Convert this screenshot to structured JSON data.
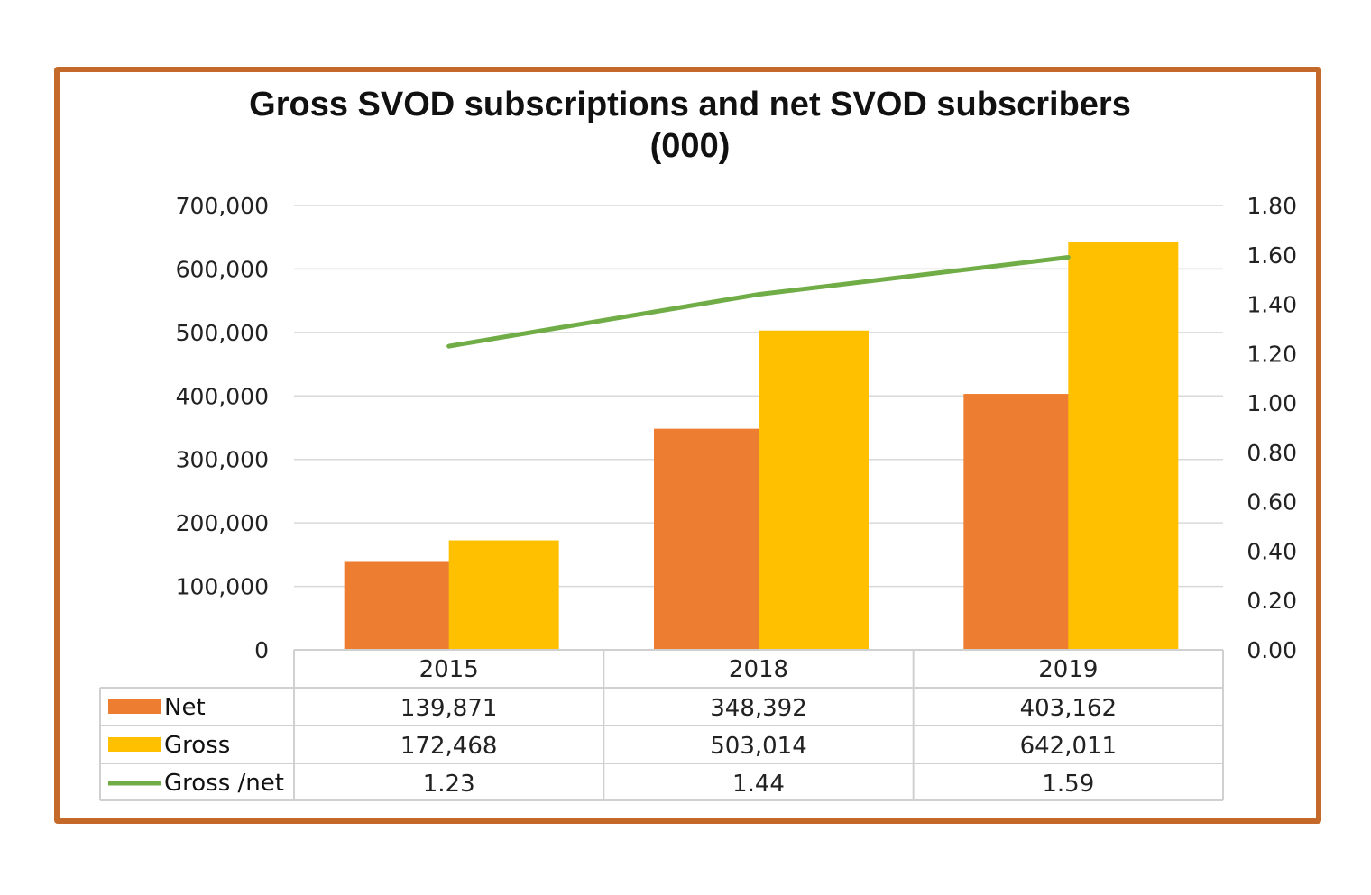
{
  "chart_data": {
    "type": "bar",
    "title": "Gross SVOD subscriptions and net SVOD subscribers",
    "subtitle": "(000)",
    "categories": [
      "2015",
      "2018",
      "2019"
    ],
    "series": [
      {
        "name": "Net",
        "kind": "bar",
        "color": "#ed7d31",
        "values": [
          139871,
          348392,
          403162
        ],
        "labels": [
          "139,871",
          "348,392",
          "403,162"
        ]
      },
      {
        "name": "Gross",
        "kind": "bar",
        "color": "#ffc000",
        "values": [
          172468,
          503014,
          642011
        ],
        "labels": [
          "172,468",
          "503,014",
          "642,011"
        ]
      },
      {
        "name": "Gross /net",
        "kind": "line",
        "axis": "right",
        "color": "#70ad47",
        "values": [
          1.23,
          1.44,
          1.59
        ],
        "labels": [
          "1.23",
          "1.44",
          "1.59"
        ]
      }
    ],
    "ylim": [
      0,
      700000
    ],
    "yticks": [
      "0",
      "100,000",
      "200,000",
      "300,000",
      "400,000",
      "500,000",
      "600,000",
      "700,000"
    ],
    "y2lim": [
      0,
      1.8
    ],
    "y2ticks": [
      "0.00",
      "0.20",
      "0.40",
      "0.60",
      "0.80",
      "1.00",
      "1.20",
      "1.40",
      "1.60",
      "1.80"
    ],
    "grid": true,
    "legend": "data-table"
  },
  "colors": {
    "frame": "#c5692a",
    "net": "#ed7d31",
    "gross": "#ffc000",
    "ratio": "#70ad47",
    "grid": "#d9d9d9"
  }
}
